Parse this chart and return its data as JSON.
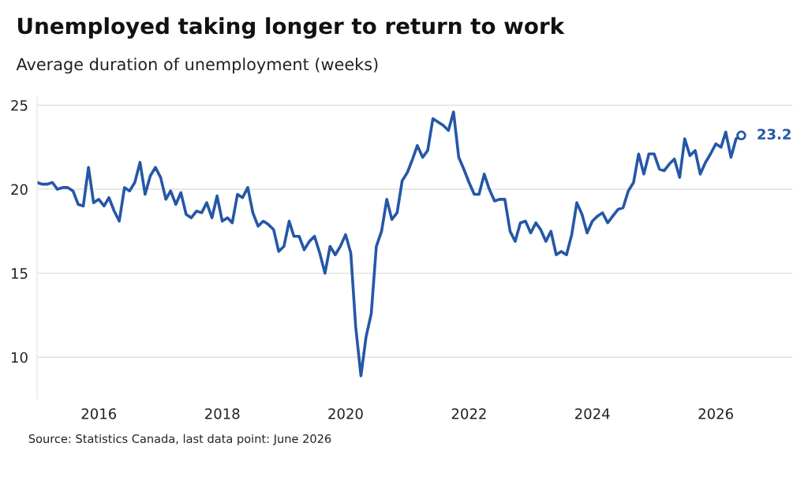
{
  "chart_data": {
    "type": "line",
    "title": "Unemployed taking longer to return to work",
    "subtitle": "Average duration of unemployment (weeks)",
    "annotations": [
      "Source: Statistics Canada, last data point: June 2026"
    ],
    "x": [
      "2015-01",
      "2015-02",
      "2015-03",
      "2015-04",
      "2015-05",
      "2015-06",
      "2015-07",
      "2015-08",
      "2015-09",
      "2015-10",
      "2015-11",
      "2015-12",
      "2016-01",
      "2016-02",
      "2016-03",
      "2016-04",
      "2016-05",
      "2016-06",
      "2016-07",
      "2016-08",
      "2016-09",
      "2016-10",
      "2016-11",
      "2016-12",
      "2017-01",
      "2017-02",
      "2017-03",
      "2017-04",
      "2017-05",
      "2017-06",
      "2017-07",
      "2017-08",
      "2017-09",
      "2017-10",
      "2017-11",
      "2017-12",
      "2018-01",
      "2018-02",
      "2018-03",
      "2018-04",
      "2018-05",
      "2018-06",
      "2018-07",
      "2018-08",
      "2018-09",
      "2018-10",
      "2018-11",
      "2018-12",
      "2019-01",
      "2019-02",
      "2019-03",
      "2019-04",
      "2019-05",
      "2019-06",
      "2019-07",
      "2019-08",
      "2019-09",
      "2019-10",
      "2019-11",
      "2019-12",
      "2020-01",
      "2020-02",
      "2020-03",
      "2020-04",
      "2020-05",
      "2020-06",
      "2020-07",
      "2020-08",
      "2020-09",
      "2020-10",
      "2020-11",
      "2020-12",
      "2021-01",
      "2021-02",
      "2021-03",
      "2021-04",
      "2021-05",
      "2021-06",
      "2021-07",
      "2021-08",
      "2021-09",
      "2021-10",
      "2021-11",
      "2021-12",
      "2022-01",
      "2022-02",
      "2022-03",
      "2022-04",
      "2022-05",
      "2022-06",
      "2022-07",
      "2022-08",
      "2022-09",
      "2022-10",
      "2022-11",
      "2022-12",
      "2023-01",
      "2023-02",
      "2023-03",
      "2023-04",
      "2023-05",
      "2023-06",
      "2023-07",
      "2023-08",
      "2023-09",
      "2023-10",
      "2023-11",
      "2023-12",
      "2024-01",
      "2024-02",
      "2024-03",
      "2024-04",
      "2024-05",
      "2024-06",
      "2024-07",
      "2024-08",
      "2024-09",
      "2024-10",
      "2024-11",
      "2024-12",
      "2025-01",
      "2025-02",
      "2025-03",
      "2025-04",
      "2025-05",
      "2025-06",
      "2025-07",
      "2025-08",
      "2025-09",
      "2025-10",
      "2025-11",
      "2025-12",
      "2026-01",
      "2026-02",
      "2026-03",
      "2026-04",
      "2026-05",
      "2026-06"
    ],
    "series": [
      {
        "color": "#2557a7",
        "values": [
          20.4,
          20.3,
          20.3,
          20.4,
          20.0,
          20.1,
          20.1,
          19.9,
          19.1,
          19.0,
          21.3,
          19.2,
          19.4,
          19.0,
          19.5,
          18.7,
          18.1,
          20.1,
          19.9,
          20.4,
          21.6,
          19.7,
          20.8,
          21.3,
          20.7,
          19.4,
          19.9,
          19.1,
          19.8,
          18.5,
          18.3,
          18.7,
          18.6,
          19.2,
          18.3,
          19.6,
          18.1,
          18.3,
          18.0,
          19.7,
          19.5,
          20.1,
          18.6,
          17.8,
          18.1,
          17.9,
          17.6,
          16.3,
          16.6,
          18.1,
          17.2,
          17.2,
          16.4,
          16.9,
          17.2,
          16.2,
          15.0,
          16.6,
          16.1,
          16.6,
          17.3,
          16.2,
          11.8,
          8.9,
          11.2,
          12.6,
          16.6,
          17.5,
          19.4,
          18.2,
          18.6,
          20.5,
          21.0,
          21.8,
          22.6,
          21.9,
          22.3,
          24.2,
          24.0,
          23.8,
          23.5,
          24.6,
          21.9,
          21.2,
          20.4,
          19.7,
          19.7,
          20.9,
          20.0,
          19.3,
          19.4,
          19.4,
          17.5,
          16.9,
          18.0,
          18.1,
          17.4,
          18.0,
          17.6,
          16.9,
          17.5,
          16.1,
          16.3,
          16.1,
          17.3,
          19.2,
          18.5,
          17.4,
          18.1,
          18.4,
          18.6,
          18.0,
          18.4,
          18.8,
          18.9,
          19.9,
          20.4,
          22.1,
          20.9,
          22.1,
          22.1,
          21.2,
          21.1,
          21.5,
          21.8,
          20.7,
          23.0,
          22.0,
          22.3,
          20.9,
          21.6,
          22.1,
          22.7,
          22.5,
          23.4,
          21.9,
          23.0,
          23.2
        ],
        "value_labels": [
          null,
          null,
          null,
          null,
          null,
          null,
          null,
          null,
          null,
          null,
          null,
          null,
          null,
          null,
          null,
          null,
          null,
          null,
          null,
          null,
          null,
          null,
          null,
          null,
          null,
          null,
          null,
          null,
          null,
          null,
          null,
          null,
          null,
          null,
          null,
          null,
          null,
          null,
          null,
          null,
          null,
          null,
          null,
          null,
          null,
          null,
          null,
          null,
          null,
          null,
          null,
          null,
          null,
          null,
          null,
          null,
          null,
          null,
          null,
          null,
          null,
          null,
          null,
          null,
          null,
          null,
          null,
          null,
          null,
          null,
          null,
          null,
          null,
          null,
          null,
          null,
          null,
          null,
          null,
          null,
          null,
          null,
          null,
          null,
          null,
          null,
          null,
          null,
          null,
          null,
          null,
          null,
          null,
          null,
          null,
          null,
          null,
          null,
          null,
          null,
          null,
          null,
          null,
          null,
          null,
          null,
          null,
          null,
          null,
          null,
          null,
          null,
          null,
          null,
          null,
          null,
          null,
          null,
          null,
          null,
          null,
          null,
          null,
          null,
          null,
          null,
          null,
          null,
          null,
          null,
          null,
          null,
          null,
          null,
          null,
          null,
          null,
          "23.2"
        ]
      }
    ],
    "xlim": [
      "2015-01",
      "2027-04"
    ],
    "xticks": [
      {
        "value": "2016-01",
        "label": "2016"
      },
      {
        "value": "2018-01",
        "label": "2018"
      },
      {
        "value": "2020-01",
        "label": "2020"
      },
      {
        "value": "2022-01",
        "label": "2022"
      },
      {
        "value": "2024-01",
        "label": "2024"
      },
      {
        "value": "2026-01",
        "label": "2026"
      }
    ],
    "ylim": [
      7.5,
      25.5
    ],
    "yticks": [
      10,
      15,
      20,
      25
    ],
    "grid": "y",
    "marker": "none",
    "line_style": "solid"
  }
}
